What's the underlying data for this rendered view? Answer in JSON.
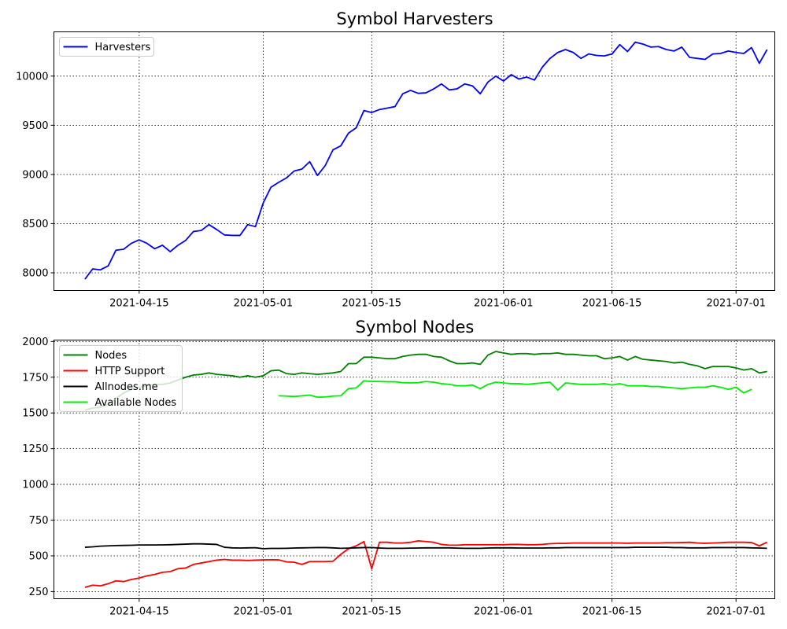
{
  "chart_data": [
    {
      "type": "line",
      "title": "Symbol Harvesters",
      "xlabel": "",
      "ylabel": "",
      "x_start": "2021-04-08",
      "x_end": "2021-07-02",
      "xlim": [
        "2021-04-04",
        "2021-07-06"
      ],
      "ylim": [
        7820,
        10450
      ],
      "xticks": [
        "2021-04-15",
        "2021-05-01",
        "2021-05-15",
        "2021-06-01",
        "2021-06-15",
        "2021-07-01"
      ],
      "yticks": [
        8000,
        8500,
        9000,
        9500,
        10000
      ],
      "grid": true,
      "legend_position": "upper-left",
      "series": [
        {
          "name": "Harvesters",
          "color": "#0000ff",
          "values": [
            7935,
            8040,
            8030,
            8070,
            8230,
            8240,
            8300,
            8335,
            8300,
            8245,
            8280,
            8215,
            8280,
            8330,
            8420,
            8430,
            8490,
            8440,
            8385,
            8380,
            8380,
            8490,
            8470,
            8710,
            8870,
            8920,
            8965,
            9035,
            9055,
            9130,
            8990,
            9090,
            9250,
            9290,
            9420,
            9475,
            9650,
            9630,
            9660,
            9675,
            9690,
            9820,
            9855,
            9825,
            9830,
            9870,
            9920,
            9860,
            9870,
            9920,
            9900,
            9820,
            9940,
            10000,
            9950,
            10015,
            9970,
            9990,
            9960,
            10090,
            10180,
            10240,
            10270,
            10240,
            10180,
            10225,
            10210,
            10205,
            10225,
            10320,
            10250,
            10345,
            10325,
            10295,
            10300,
            10270,
            10255,
            10295,
            10190,
            10180,
            10170,
            10225,
            10230,
            10255,
            10240,
            10230,
            10290,
            10130,
            10270
          ]
        }
      ]
    },
    {
      "type": "line",
      "title": "Symbol Nodes",
      "xlabel": "",
      "ylabel": "",
      "x_start": "2021-04-08",
      "x_end": "2021-07-02",
      "xlim": [
        "2021-04-04",
        "2021-07-06"
      ],
      "ylim": [
        200,
        2010
      ],
      "xticks": [
        "2021-04-15",
        "2021-05-01",
        "2021-05-15",
        "2021-06-01",
        "2021-06-15",
        "2021-07-01"
      ],
      "yticks": [
        250,
        500,
        750,
        1000,
        1250,
        1500,
        1750,
        2000
      ],
      "grid": true,
      "legend_position": "upper-left",
      "series": [
        {
          "name": "Nodes",
          "color": "#008000",
          "values": [
            1520,
            1535,
            1540,
            1560,
            1600,
            1640,
            1665,
            1680,
            1690,
            1700,
            1700,
            1710,
            1730,
            1750,
            1765,
            1770,
            1780,
            1770,
            1765,
            1760,
            1750,
            1760,
            1750,
            1760,
            1795,
            1800,
            1775,
            1770,
            1780,
            1775,
            1770,
            1775,
            1780,
            1790,
            1845,
            1845,
            1890,
            1890,
            1885,
            1880,
            1880,
            1895,
            1905,
            1910,
            1910,
            1895,
            1890,
            1865,
            1845,
            1845,
            1850,
            1840,
            1905,
            1930,
            1920,
            1910,
            1915,
            1915,
            1910,
            1915,
            1915,
            1920,
            1910,
            1910,
            1905,
            1900,
            1900,
            1880,
            1885,
            1895,
            1870,
            1895,
            1875,
            1870,
            1865,
            1860,
            1850,
            1855,
            1840,
            1830,
            1810,
            1825,
            1825,
            1825,
            1815,
            1800,
            1810,
            1780,
            1790
          ]
        },
        {
          "name": "HTTP Support",
          "color": "#ff0000",
          "values": [
            280,
            295,
            290,
            305,
            325,
            320,
            335,
            345,
            360,
            370,
            385,
            390,
            410,
            415,
            440,
            450,
            460,
            470,
            475,
            470,
            470,
            468,
            470,
            472,
            473,
            472,
            458,
            455,
            440,
            460,
            460,
            460,
            462,
            510,
            550,
            570,
            600,
            410,
            595,
            595,
            590,
            590,
            595,
            605,
            600,
            595,
            580,
            575,
            575,
            578,
            578,
            578,
            578,
            578,
            578,
            580,
            580,
            578,
            578,
            580,
            585,
            587,
            587,
            590,
            590,
            590,
            590,
            590,
            590,
            590,
            588,
            590,
            590,
            590,
            590,
            592,
            592,
            593,
            595,
            590,
            588,
            590,
            592,
            595,
            595,
            595,
            593,
            570,
            595
          ]
        },
        {
          "name": "Allnodes.me",
          "color": "#000000",
          "values": [
            560,
            563,
            568,
            570,
            572,
            573,
            574,
            576,
            576,
            576,
            577,
            578,
            580,
            582,
            584,
            584,
            582,
            580,
            560,
            556,
            555,
            556,
            557,
            550,
            552,
            552,
            553,
            555,
            556,
            557,
            558,
            558,
            556,
            553,
            554,
            556,
            558,
            558,
            555,
            553,
            553,
            553,
            554,
            555,
            556,
            556,
            556,
            556,
            554,
            553,
            553,
            553,
            555,
            556,
            556,
            556,
            555,
            555,
            555,
            555,
            556,
            556,
            558,
            558,
            558,
            558,
            558,
            558,
            558,
            558,
            558,
            560,
            560,
            560,
            560,
            560,
            558,
            558,
            556,
            556,
            556,
            558,
            558,
            558,
            558,
            558,
            556,
            555,
            553
          ]
        },
        {
          "name": "Available Nodes",
          "color": "#00ee00",
          "start_index": 25,
          "values": [
            1620,
            1618,
            1615,
            1620,
            1625,
            1610,
            1612,
            1618,
            1620,
            1670,
            1675,
            1725,
            1720,
            1720,
            1718,
            1718,
            1712,
            1710,
            1712,
            1720,
            1715,
            1705,
            1700,
            1690,
            1690,
            1695,
            1670,
            1700,
            1715,
            1710,
            1705,
            1705,
            1700,
            1705,
            1710,
            1715,
            1660,
            1710,
            1705,
            1700,
            1700,
            1700,
            1705,
            1695,
            1705,
            1690,
            1690,
            1690,
            1685,
            1685,
            1680,
            1675,
            1670,
            1675,
            1680,
            1680,
            1690,
            1680,
            1665,
            1680,
            1640,
            1665
          ]
        }
      ]
    }
  ]
}
